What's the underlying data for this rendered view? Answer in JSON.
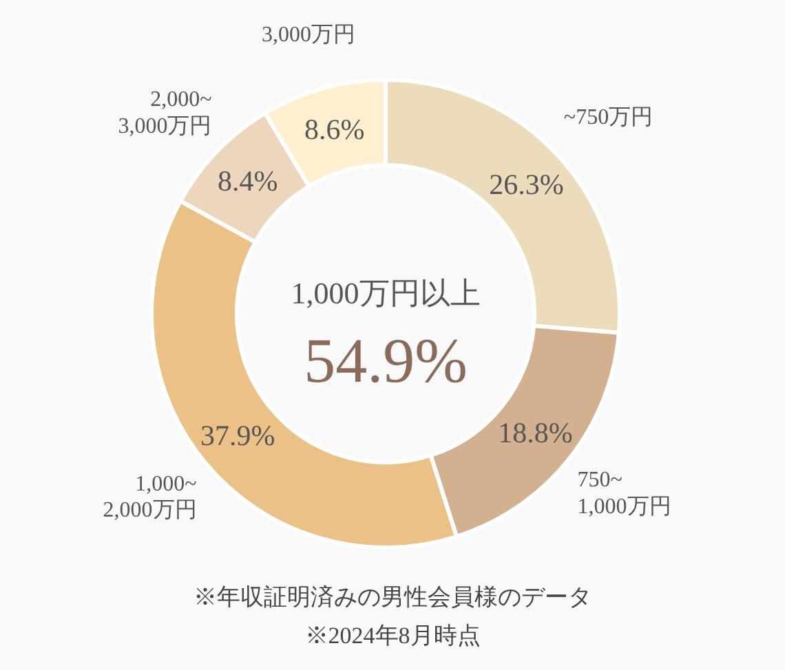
{
  "chart_data": {
    "type": "donut",
    "categories": [
      "~750万円",
      "750~\n1,000万円",
      "1,000~\n2,000万円",
      "2,000~\n3,000万円",
      "3,000万円"
    ],
    "values": [
      26.3,
      18.8,
      37.9,
      8.4,
      8.6
    ],
    "colors": [
      "#eddcbc",
      "#d3b190",
      "#ebc188",
      "#edd6bd",
      "#fdefcf"
    ],
    "value_labels": [
      "26.3%",
      "18.8%",
      "37.9%",
      "8.4%",
      "8.6%"
    ],
    "annotations": [
      "1,000万円以上",
      "54.9%",
      "※年収証明済みの男性会員様のデータ",
      "※2024年8月時点"
    ],
    "legend": false
  }
}
